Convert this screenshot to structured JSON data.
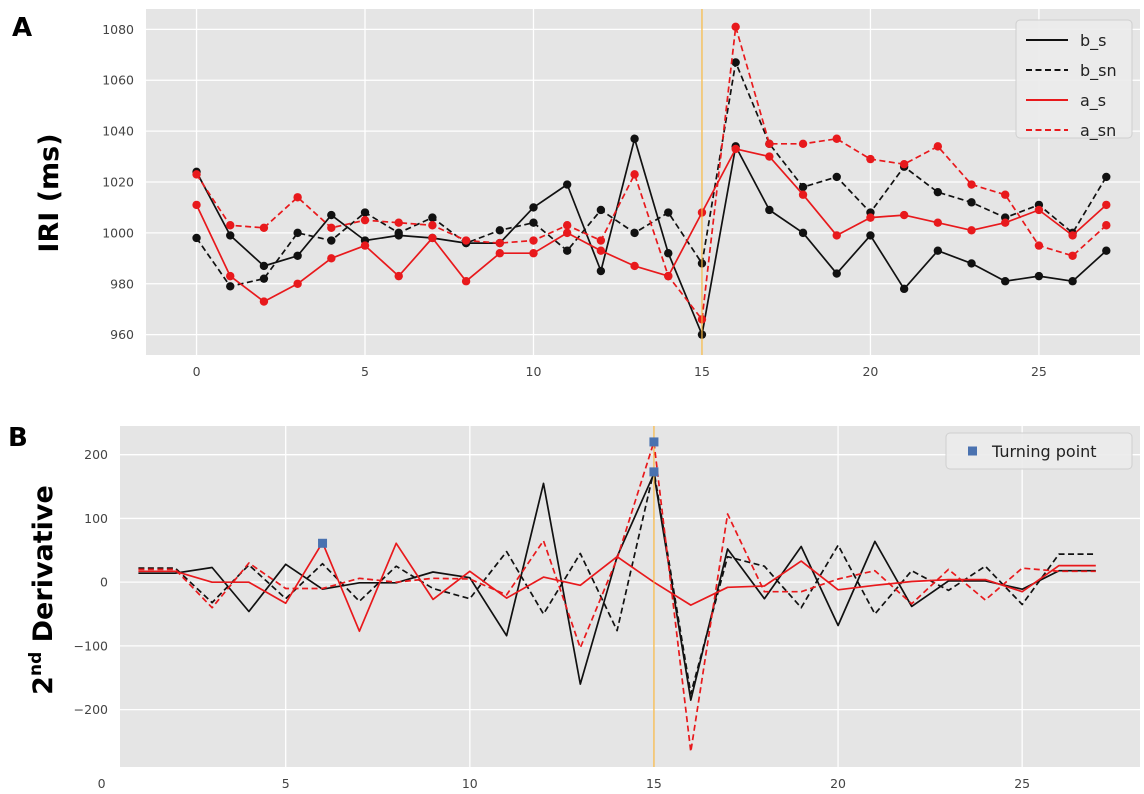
{
  "chart_data": [
    {
      "type": "line",
      "panel_label": "A",
      "ylabel": "IRI (ms)",
      "xlim": [
        -1.5,
        28
      ],
      "ylim": [
        952,
        1088
      ],
      "xticks": [
        0,
        5,
        10,
        15,
        20,
        25
      ],
      "yticks": [
        960,
        980,
        1000,
        1020,
        1040,
        1060,
        1080
      ],
      "grid": true,
      "legend_position": "top-right",
      "vline_x": 15,
      "vline_color": "#f5b43c",
      "series": [
        {
          "name": "b_s",
          "color": "#111111",
          "dash": "solid",
          "markers": true,
          "x": [
            0,
            1,
            2,
            3,
            4,
            5,
            6,
            7,
            8,
            9,
            10,
            11,
            12,
            13,
            14,
            15,
            16,
            17,
            18,
            19,
            20,
            21,
            22,
            23,
            24,
            25,
            26,
            27
          ],
          "y": [
            1024,
            999,
            987,
            991,
            1007,
            997,
            999,
            998,
            996,
            996,
            1010,
            1019,
            985,
            1037,
            992,
            960,
            1034,
            1009,
            1000,
            984,
            999,
            978,
            993,
            988,
            981,
            983,
            981,
            993
          ]
        },
        {
          "name": "b_sn",
          "color": "#111111",
          "dash": "dashed",
          "markers": true,
          "x": [
            0,
            1,
            2,
            3,
            4,
            5,
            6,
            7,
            8,
            9,
            10,
            11,
            12,
            13,
            14,
            15,
            16,
            17,
            18,
            19,
            20,
            21,
            22,
            23,
            24,
            25,
            26,
            27
          ],
          "y": [
            998,
            979,
            982,
            1000,
            997,
            1008,
            1000,
            1006,
            996,
            1001,
            1004,
            993,
            1009,
            1000,
            1008,
            988,
            1067,
            1035,
            1018,
            1022,
            1008,
            1026,
            1016,
            1012,
            1006,
            1011,
            1000,
            1022
          ]
        },
        {
          "name": "a_s",
          "color": "#e8191c",
          "dash": "solid",
          "markers": true,
          "x": [
            0,
            1,
            2,
            3,
            4,
            5,
            6,
            7,
            8,
            9,
            10,
            11,
            12,
            13,
            14,
            15,
            16,
            17,
            18,
            19,
            20,
            21,
            22,
            23,
            24,
            25,
            26,
            27
          ],
          "y": [
            1011,
            983,
            973,
            980,
            990,
            995,
            983,
            998,
            981,
            992,
            992,
            1000,
            993,
            987,
            983,
            1008,
            1033,
            1030,
            1015,
            999,
            1006,
            1007,
            1004,
            1001,
            1004,
            1009,
            999,
            1011
          ]
        },
        {
          "name": "a_sn",
          "color": "#e8191c",
          "dash": "dashed",
          "markers": true,
          "x": [
            0,
            1,
            2,
            3,
            4,
            5,
            6,
            7,
            8,
            9,
            10,
            11,
            12,
            13,
            14,
            15,
            16,
            17,
            18,
            19,
            20,
            21,
            22,
            23,
            24,
            25,
            26,
            27
          ],
          "y": [
            1023,
            1003,
            1002,
            1014,
            1002,
            1005,
            1004,
            1003,
            997,
            996,
            997,
            1003,
            997,
            1023,
            983,
            966,
            1081,
            1035,
            1035,
            1037,
            1029,
            1027,
            1034,
            1019,
            1015,
            995,
            991,
            1003
          ]
        }
      ]
    },
    {
      "type": "line",
      "panel_label": "B",
      "ylabel": "2nd Derivative",
      "ylabel_main": "2",
      "ylabel_sup": "nd",
      "ylabel_rest": " Derivative",
      "xlim": [
        0.5,
        28.2
      ],
      "ylim": [
        -290,
        245
      ],
      "xticks": [
        0,
        5,
        10,
        15,
        20,
        25
      ],
      "yticks": [
        200,
        100,
        0,
        -100,
        -200
      ],
      "ytick_labels": [
        "200",
        "100",
        "0",
        "−100",
        "−200"
      ],
      "grid": true,
      "legend_position": "top-right",
      "vline_x": 15,
      "vline_color": "#f5b43c",
      "series": [
        {
          "name": "b_s",
          "color": "#111111",
          "dash": "solid",
          "x": [
            1,
            2,
            3,
            4,
            5,
            6,
            7,
            8,
            9,
            10,
            11,
            12,
            13,
            14,
            15,
            16,
            17,
            18,
            19,
            20,
            21,
            22,
            23,
            24,
            25,
            26,
            27
          ],
          "y": [
            14,
            14,
            23,
            -46,
            28,
            -11,
            -1,
            -1,
            16,
            7,
            -84,
            155,
            -160,
            40,
            170,
            -185,
            52,
            -26,
            56,
            -68,
            64,
            -38,
            2,
            2,
            -11,
            18,
            18
          ]
        },
        {
          "name": "b_sn",
          "color": "#111111",
          "dash": "dashed",
          "x": [
            1,
            2,
            3,
            4,
            5,
            6,
            7,
            8,
            9,
            10,
            11,
            12,
            13,
            14,
            15,
            16,
            17,
            18,
            19,
            20,
            21,
            22,
            23,
            24,
            25,
            26,
            27
          ],
          "y": [
            22,
            22,
            -32,
            27,
            -26,
            29,
            -30,
            25,
            -10,
            -26,
            48,
            -50,
            45,
            -76,
            175,
            -175,
            40,
            25,
            -40,
            58,
            -50,
            18,
            -13,
            25,
            -35,
            44,
            44
          ]
        },
        {
          "name": "a_s",
          "color": "#e8191c",
          "dash": "solid",
          "x": [
            1,
            2,
            3,
            4,
            5,
            6,
            7,
            8,
            9,
            10,
            11,
            12,
            13,
            14,
            15,
            16,
            17,
            18,
            19,
            20,
            21,
            22,
            23,
            24,
            25,
            26,
            27
          ],
          "y": [
            17,
            17,
            0,
            0,
            -33,
            62,
            -77,
            61,
            -27,
            17,
            -25,
            8,
            -5,
            40,
            0,
            -36,
            -8,
            -6,
            33,
            -12,
            -5,
            1,
            4,
            4,
            -15,
            26,
            26
          ]
        },
        {
          "name": "a_sn",
          "color": "#e8191c",
          "dash": "dashed",
          "x": [
            1,
            2,
            3,
            4,
            5,
            6,
            7,
            8,
            9,
            10,
            11,
            12,
            13,
            14,
            15,
            16,
            17,
            18,
            19,
            20,
            21,
            22,
            23,
            24,
            25,
            26,
            27
          ],
          "y": [
            20,
            20,
            -40,
            30,
            -10,
            -10,
            6,
            0,
            6,
            5,
            -20,
            65,
            -103,
            37,
            220,
            -266,
            107,
            -15,
            -15,
            5,
            18,
            -34,
            20,
            -28,
            22,
            17,
            17
          ]
        }
      ],
      "turning_points": {
        "name": "Turning point",
        "color": "#4a72b0",
        "x": [
          6,
          15,
          15
        ],
        "y": [
          61,
          220,
          173
        ]
      }
    }
  ]
}
